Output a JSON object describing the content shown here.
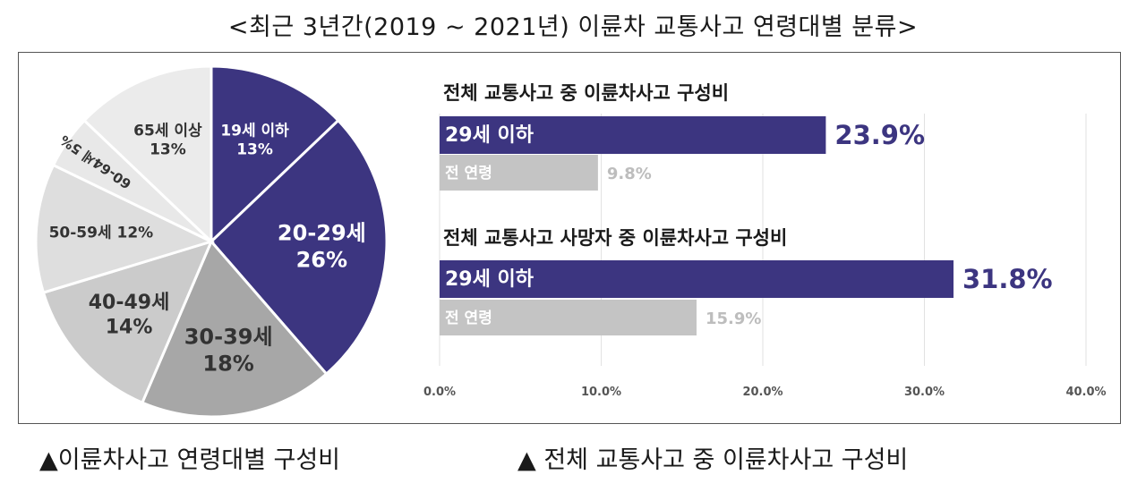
{
  "title": "<최근 3년간(2019 ~ 2021년) 이륜차 교통사고 연령대별 분류>",
  "captions": {
    "left": "▲이륜차사고 연령대별 구성비",
    "right": "▲ 전체 교통사고 중 이륜차사고 구성비"
  },
  "colors": {
    "navy": "#3c3580",
    "gray_dark": "#a7a7a7",
    "gray_mid": "#cbcbcb",
    "gray_light": "#dedede",
    "gray_lighter": "#ebebeb",
    "bar_gray": "#c4c4c4"
  },
  "chart_data": [
    {
      "type": "pie",
      "slices": [
        {
          "label": "19세 이하",
          "pct_label": "13%",
          "value": 13,
          "color": "#3c3580"
        },
        {
          "label": "20-29세",
          "pct_label": "26%",
          "value": 26,
          "color": "#3c3580"
        },
        {
          "label": "30-39세",
          "pct_label": "18%",
          "value": 18,
          "color": "#a7a7a7"
        },
        {
          "label": "40-49세",
          "pct_label": "14%",
          "value": 14,
          "color": "#cbcbcb"
        },
        {
          "label": "50-59세 12%",
          "pct_label": "",
          "value": 12,
          "color": "#dedede"
        },
        {
          "label": "60-64세 5%",
          "pct_label": "",
          "value": 5,
          "color": "#e8e8e8"
        },
        {
          "label": "65세 이상",
          "pct_label": "13%",
          "value": 13,
          "color": "#ebebeb"
        }
      ]
    },
    {
      "type": "bar",
      "orientation": "horizontal",
      "xlim": [
        0,
        40
      ],
      "ticks": [
        "0.0%",
        "10.0%",
        "20.0%",
        "30.0%",
        "40.0%"
      ],
      "groups": [
        {
          "title": "전체 교통사고 중 이륜차사고 구성비",
          "bars": [
            {
              "label": "29세 이하",
              "value": 23.9,
              "value_label": "23.9%",
              "color": "#3c3580"
            },
            {
              "label": "전 연령",
              "value": 9.8,
              "value_label": "9.8%",
              "color": "#c4c4c4"
            }
          ]
        },
        {
          "title": "전체 교통사고 사망자 중 이륜차사고 구성비",
          "bars": [
            {
              "label": "29세 이하",
              "value": 31.8,
              "value_label": "31.8%",
              "color": "#3c3580"
            },
            {
              "label": "전 연령",
              "value": 15.9,
              "value_label": "15.9%",
              "color": "#c4c4c4"
            }
          ]
        }
      ]
    }
  ]
}
